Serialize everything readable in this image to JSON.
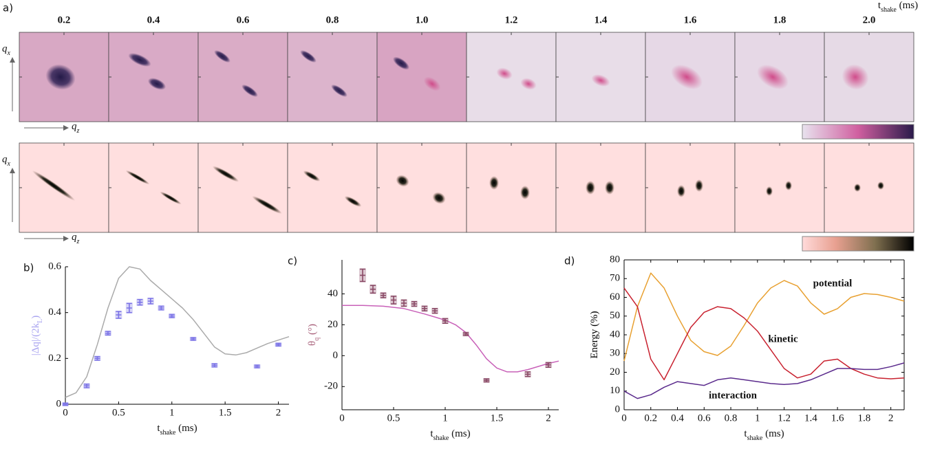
{
  "panel_a": {
    "label": "a)",
    "times": [
      "0.2",
      "0.4",
      "0.6",
      "0.8",
      "1.0",
      "1.2",
      "1.4",
      "1.6",
      "1.8",
      "2.0"
    ],
    "time_label": [
      "t",
      "shake",
      " (ms)"
    ],
    "qx_label": [
      "q",
      "x"
    ],
    "qz_label": [
      "q",
      "z"
    ]
  },
  "chart_data": [
    {
      "type": "errorbar",
      "label": "b)",
      "xlim": [
        0,
        2.1
      ],
      "xticks": [
        0,
        0.5,
        1,
        1.5,
        2
      ],
      "ylim": [
        0,
        0.6
      ],
      "yticks": [
        0,
        0.2,
        0.4,
        0.6
      ],
      "x_label": [
        "t",
        "shake",
        " (ms)"
      ],
      "y_label": [
        "|Δq|/(2k",
        "L",
        ")"
      ],
      "y_label_color": "#a9a4f0",
      "box": false,
      "series": [
        {
          "color": "#aaaaaa",
          "x": [
            0,
            0.1,
            0.2,
            0.3,
            0.4,
            0.5,
            0.6,
            0.7,
            0.8,
            0.9,
            1.0,
            1.1,
            1.2,
            1.3,
            1.4,
            1.5,
            1.6,
            1.7,
            1.8,
            1.9,
            2.0,
            2.1
          ],
          "values": [
            0.03,
            0.05,
            0.12,
            0.26,
            0.42,
            0.55,
            0.6,
            0.59,
            0.54,
            0.5,
            0.46,
            0.42,
            0.37,
            0.31,
            0.25,
            0.22,
            0.215,
            0.225,
            0.245,
            0.265,
            0.28,
            0.295
          ]
        },
        {
          "color": "#7b73e6",
          "x": [
            0,
            0.2,
            0.3,
            0.4,
            0.5,
            0.6,
            0.7,
            0.8,
            0.9,
            1.0,
            1.2,
            1.4,
            1.8,
            2.0
          ],
          "values": [
            0,
            0.08,
            0.2,
            0.31,
            0.39,
            0.42,
            0.445,
            0.45,
            0.42,
            0.385,
            0.285,
            0.17,
            0.165,
            0.26
          ],
          "errors": [
            0.005,
            0.008,
            0.008,
            0.008,
            0.015,
            0.02,
            0.012,
            0.012,
            0.008,
            0.007,
            0.006,
            0.007,
            0.006,
            0.006
          ]
        }
      ]
    },
    {
      "type": "errorbar",
      "label": "c)",
      "xlim": [
        0,
        2.1
      ],
      "xticks": [
        0,
        0.5,
        1,
        1.5,
        2
      ],
      "ylim": [
        -35,
        62
      ],
      "yticks": [
        -20,
        0,
        20,
        40
      ],
      "x_label": [
        "t",
        "shake",
        " (ms)"
      ],
      "y_label": [
        "θ",
        "q",
        " (°)"
      ],
      "y_label_color": "#a8607a",
      "box": false,
      "series": [
        {
          "color": "#c860b8",
          "x": [
            0,
            0.2,
            0.4,
            0.6,
            0.8,
            1.0,
            1.1,
            1.2,
            1.3,
            1.4,
            1.5,
            1.6,
            1.7,
            1.8,
            1.9,
            2.0,
            2.1
          ],
          "values": [
            32.5,
            32.5,
            32,
            30.5,
            27,
            23,
            20,
            15,
            7,
            -2,
            -8,
            -10.5,
            -10.5,
            -9,
            -7,
            -5,
            -3.5
          ]
        },
        {
          "color": "#8a4a66",
          "x": [
            0.2,
            0.3,
            0.4,
            0.5,
            0.6,
            0.7,
            0.8,
            0.9,
            1.0,
            1.2,
            1.4,
            1.8,
            2.0
          ],
          "values": [
            52,
            43,
            39,
            36,
            34,
            33.5,
            30.5,
            29,
            22.5,
            14,
            -16,
            -12,
            -6
          ],
          "errors": [
            4,
            2.5,
            1.5,
            2.5,
            2,
            1.5,
            1.5,
            1.5,
            1.5,
            1,
            1,
            1.5,
            1.5
          ]
        }
      ]
    },
    {
      "type": "line",
      "label": "d)",
      "xlim": [
        0,
        2.1
      ],
      "xticks": [
        0,
        0.2,
        0.4,
        0.6,
        0.8,
        1,
        1.2,
        1.4,
        1.6,
        1.8,
        2
      ],
      "ylim": [
        0,
        80
      ],
      "yticks": [
        0,
        10,
        20,
        30,
        40,
        50,
        60,
        70,
        80
      ],
      "x_label": [
        "t",
        "shake",
        " (ms)"
      ],
      "y_label": [
        "Energy (%)"
      ],
      "y_label_color": "#000000",
      "box": true,
      "x": [
        0,
        0.1,
        0.2,
        0.3,
        0.4,
        0.5,
        0.6,
        0.7,
        0.8,
        0.9,
        1.0,
        1.1,
        1.2,
        1.3,
        1.4,
        1.5,
        1.6,
        1.7,
        1.8,
        1.9,
        2.0,
        2.1
      ],
      "series": [
        {
          "name": "potential",
          "color": "#e8a030",
          "values": [
            26,
            55,
            73,
            65,
            50,
            37,
            31,
            29,
            34,
            45,
            57,
            65,
            69,
            66,
            57,
            51,
            54,
            60,
            62,
            61.5,
            60,
            58
          ]
        },
        {
          "name": "kinetic",
          "color": "#c8202e",
          "values": [
            65,
            55,
            27,
            16,
            30,
            44,
            52,
            55,
            54,
            49,
            42,
            32,
            22,
            17,
            19,
            26,
            27,
            22,
            19,
            17,
            16.5,
            17
          ]
        },
        {
          "name": "interaction",
          "color": "#5a2a8c",
          "values": [
            10,
            6,
            8,
            12,
            15,
            14,
            13,
            16,
            17,
            16,
            15,
            14,
            13.5,
            14,
            16,
            19,
            22,
            22,
            21.5,
            21.5,
            23,
            25
          ]
        }
      ]
    }
  ]
}
